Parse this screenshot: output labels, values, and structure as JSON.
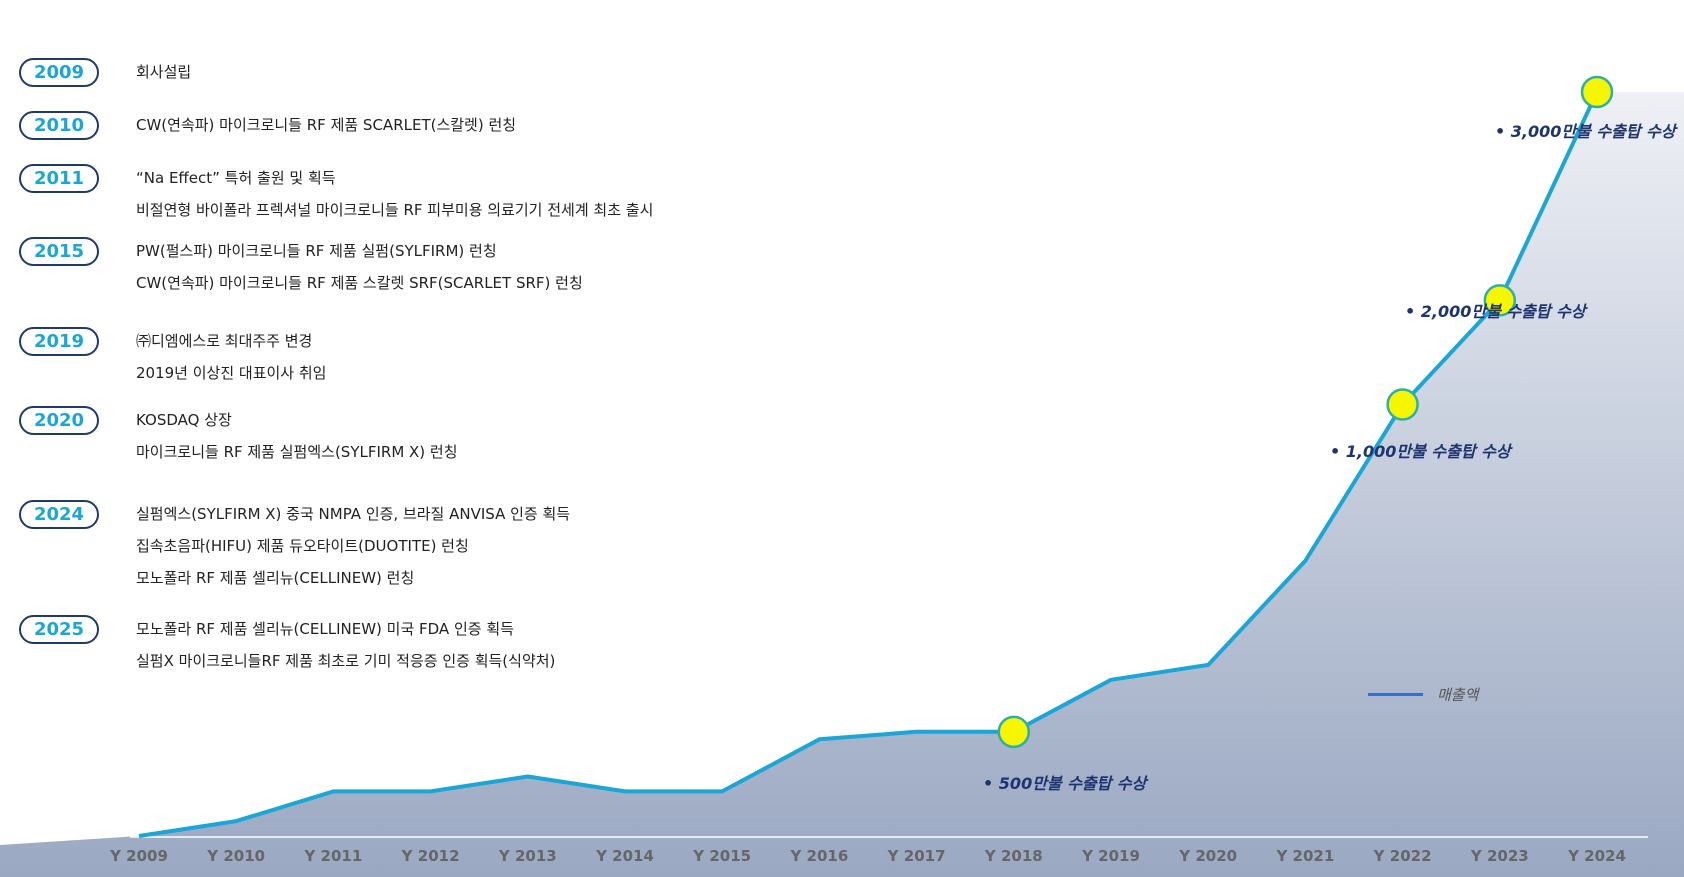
{
  "timeline": [
    {
      "year": "2009",
      "events": [
        "회사설립"
      ]
    },
    {
      "year": "2010",
      "events": [
        "CW(연속파) 마이크로니들 RF 제품 SCARLET(스칼렛) 런칭"
      ]
    },
    {
      "year": "2011",
      "events": [
        "“Na Effect” 특허 출원 및 획득",
        "비절연형 바이폴라 프렉셔널 마이크로니들 RF 피부미용 의료기기 전세계 최초 출시"
      ]
    },
    {
      "year": "2015",
      "events": [
        "PW(펄스파) 마이크로니들 RF 제품 실펌(SYLFIRM) 런칭",
        "CW(연속파) 마이크로니들 RF 제품 스칼렛 SRF(SCARLET SRF) 런칭"
      ]
    },
    {
      "year": "2019",
      "events": [
        "㈜디엠에스로 최대주주 변경",
        "2019년 이상진 대표이사 취임"
      ]
    },
    {
      "year": "2020",
      "events": [
        "KOSDAQ 상장",
        "마이크로니들 RF 제품 실펌엑스(SYLFIRM X) 런칭"
      ]
    },
    {
      "year": "2024",
      "events": [
        "실펌엑스(SYLFIRM X) 중국 NMPA 인증, 브라질 ANVISA 인증 획득",
        "집속초음파(HIFU) 제품 듀오타이트(DUOTITE) 런칭",
        "모노폴라 RF 제품 셀리뉴(CELLINEW) 런칭"
      ]
    },
    {
      "year": "2025",
      "events": [
        "모노폴라 RF 제품 셀리뉴(CELLINEW) 미국 FDA 인증 획득",
        "실펌X 마이크로니들RF 제품 최초로 기미 적응증 인증 획득(식약처)"
      ]
    }
  ],
  "chart_data": {
    "type": "line",
    "categories": [
      "Y 2009",
      "Y 2010",
      "Y 2011",
      "Y 2012",
      "Y 2013",
      "Y 2014",
      "Y 2015",
      "Y 2016",
      "Y 2017",
      "Y 2018",
      "Y 2019",
      "Y 2020",
      "Y 2021",
      "Y 2022",
      "Y 2023",
      "Y 2024"
    ],
    "series": [
      {
        "name": "매출액",
        "values": [
          0,
          2,
          6,
          6,
          8,
          6,
          6,
          13,
          14,
          14,
          21,
          23,
          37,
          58,
          72,
          100
        ]
      }
    ],
    "ylim": [
      0,
      100
    ],
    "legend": "매출액",
    "legend_position": "center-right",
    "line_color": "#1aa6d6",
    "marker_color": "#f6f600",
    "annotations": [
      {
        "category": "Y 2018",
        "text": "• 500만불 수출탑 수상"
      },
      {
        "category": "Y 2022",
        "text": "• 1,000만불 수출탑 수상"
      },
      {
        "category": "Y 2023",
        "text": "• 2,000만불 수출탑 수상"
      },
      {
        "category": "Y 2024",
        "text": "• 3,000만불 수출탑 수상"
      }
    ]
  }
}
